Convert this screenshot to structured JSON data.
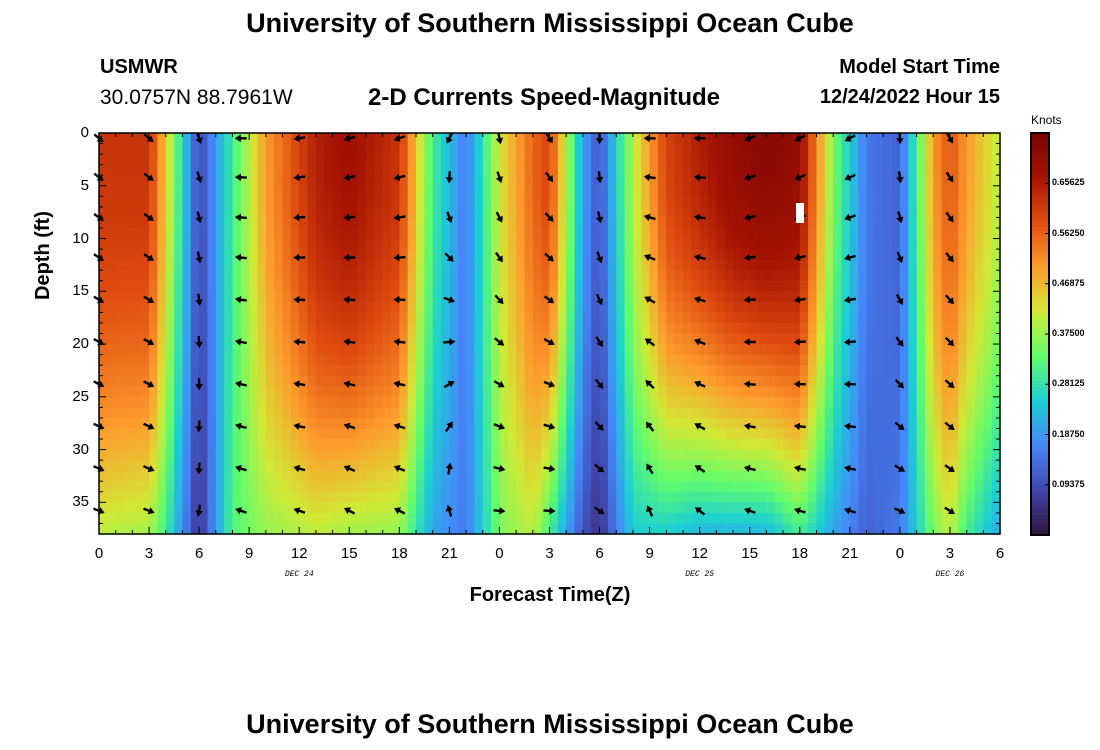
{
  "header": {
    "title": "University of Southern Mississippi Ocean Cube",
    "station": "USMWR",
    "coords": "30.0757N  88.7961W",
    "plot_title": "2-D Currents Speed-Magnitude",
    "model_start_label": "Model Start Time",
    "model_start_value": "12/24/2022 Hour 15"
  },
  "footer": {
    "title": "University of Southern Mississippi Ocean Cube"
  },
  "colorbar": {
    "units": "Knots",
    "min": 0.0,
    "max": 0.75,
    "ticks": [
      "0.65625",
      "0.56250",
      "0.46875",
      "0.37500",
      "0.28125",
      "0.18750",
      "0.09375"
    ],
    "colors": [
      "#30123b",
      "#4146ac",
      "#4686fa",
      "#1bcfd4",
      "#62fc6b",
      "#d2e935",
      "#fe9b2d",
      "#e04e10",
      "#a61403",
      "#7a0403"
    ]
  },
  "chart_data": {
    "type": "heatmap",
    "title": "2-D Currents Speed-Magnitude",
    "xlabel": "Forecast Time(Z)",
    "ylabel": "Depth (ft)",
    "x_hours": [
      0,
      3,
      6,
      9,
      12,
      15,
      18,
      21,
      24,
      27,
      30,
      33,
      36,
      39,
      42,
      45,
      48,
      51,
      54
    ],
    "x_tick_labels": [
      "0",
      "3",
      "6",
      "9",
      "12",
      "15",
      "18",
      "21",
      "0",
      "3",
      "6",
      "9",
      "12",
      "15",
      "18",
      "21",
      "0",
      "3",
      "6"
    ],
    "day_labels": [
      {
        "hour": 12,
        "label": "DEC 24"
      },
      {
        "hour": 36,
        "label": "DEC 25"
      },
      {
        "hour": 51,
        "label": "DEC 26"
      }
    ],
    "y_ticks": [
      0,
      5,
      10,
      15,
      20,
      25,
      30,
      35
    ],
    "y_tick_labels": [
      "0",
      "5",
      "10",
      "15",
      "20",
      "25",
      "30",
      "35"
    ],
    "ylim": [
      0,
      38
    ],
    "xlim": [
      0,
      54
    ],
    "arrow_depths": [
      0.5,
      4.2,
      8.0,
      11.8,
      15.8,
      19.8,
      23.8,
      27.8,
      31.8,
      35.8
    ],
    "arrow_hours": [
      0,
      3,
      6,
      8.5,
      12,
      15,
      18,
      21,
      24,
      27,
      30,
      33,
      36,
      39,
      42,
      45,
      48,
      51
    ],
    "speed_profile": {
      "hours": [
        0,
        3,
        4,
        6,
        8,
        10,
        13,
        15,
        18,
        20,
        22,
        24,
        26,
        27,
        29,
        30,
        32,
        34,
        36,
        38,
        40,
        42,
        44,
        46,
        48,
        50,
        51,
        52,
        54
      ],
      "surface": [
        0.62,
        0.62,
        0.45,
        0.08,
        0.3,
        0.5,
        0.65,
        0.68,
        0.62,
        0.3,
        0.15,
        0.42,
        0.56,
        0.6,
        0.2,
        0.1,
        0.4,
        0.6,
        0.65,
        0.7,
        0.72,
        0.7,
        0.35,
        0.15,
        0.12,
        0.5,
        0.58,
        0.5,
        0.4
      ],
      "bottom": [
        0.4,
        0.38,
        0.3,
        0.05,
        0.32,
        0.37,
        0.4,
        0.38,
        0.37,
        0.2,
        0.15,
        0.35,
        0.4,
        0.3,
        0.1,
        0.05,
        0.25,
        0.25,
        0.22,
        0.22,
        0.22,
        0.3,
        0.2,
        0.12,
        0.15,
        0.35,
        0.4,
        0.3,
        0.2
      ]
    },
    "direction_profile_deg": {
      "hours": [
        0,
        3,
        6,
        8.5,
        12,
        15,
        18,
        21,
        24,
        27,
        30,
        33,
        36,
        39,
        42,
        45,
        48,
        51
      ],
      "surface": [
        -40,
        -40,
        -70,
        180,
        190,
        195,
        200,
        -120,
        -80,
        -60,
        -90,
        180,
        180,
        200,
        210,
        210,
        -90,
        -60
      ],
      "bottom": [
        -20,
        -20,
        -100,
        160,
        160,
        150,
        150,
        120,
        0,
        0,
        -30,
        110,
        140,
        160,
        160,
        160,
        -20,
        -30
      ]
    }
  }
}
